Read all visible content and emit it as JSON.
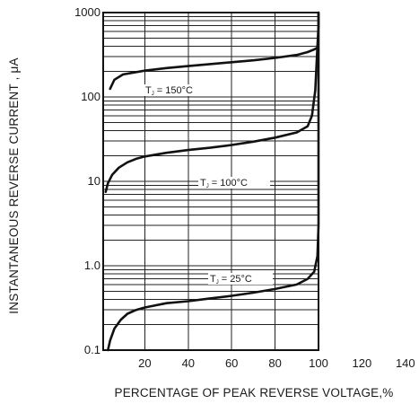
{
  "chart_data": {
    "type": "line",
    "title": "",
    "xlabel": "PERCENTAGE OF PEAK REVERSE VOLTAGE,%",
    "ylabel": "INSTANTANEOUS REVERSE CURRENT , μA",
    "xlim": [
      0,
      140
    ],
    "ylim": [
      0.1,
      1000
    ],
    "yscale": "log",
    "grid": true,
    "x_ticks": [
      20,
      40,
      60,
      80,
      100,
      120,
      140
    ],
    "x_tick_labels": [
      "20",
      "40",
      "60",
      "80",
      "100",
      "120",
      "140"
    ],
    "y_ticks": [
      0.1,
      1,
      10,
      100,
      1000
    ],
    "y_tick_labels": [
      "0.1",
      "1.0",
      "10",
      "100",
      "1000"
    ],
    "series": [
      {
        "name": "T_J = 150°C",
        "x": [
          4,
          6,
          10,
          20,
          30,
          40,
          50,
          60,
          70,
          80,
          90,
          95,
          98,
          99.5
        ],
        "y": [
          125,
          160,
          185,
          205,
          220,
          232,
          245,
          258,
          272,
          290,
          315,
          340,
          365,
          385
        ],
        "label": {
          "prefix": "T",
          "sub": "J",
          "suffix": " = 150°C"
        }
      },
      {
        "name": "T_J = 100°C",
        "x": [
          2,
          3,
          5,
          8,
          12,
          16,
          20,
          30,
          40,
          50,
          60,
          70,
          80,
          90,
          95,
          97,
          98.5,
          99.5,
          100,
          100
        ],
        "y": [
          7.5,
          9.5,
          12,
          14.5,
          16.8,
          18.5,
          19.7,
          21.8,
          23.5,
          25,
          27,
          29.5,
          33,
          38,
          45,
          60,
          120,
          400,
          700,
          1000
        ],
        "label": {
          "prefix": "T",
          "sub": "J",
          "suffix": " = 100°C"
        }
      },
      {
        "name": "T_J = 25°C",
        "x": [
          3,
          4,
          6,
          9,
          12,
          16,
          20,
          30,
          40,
          50,
          60,
          70,
          80,
          90,
          95,
          98,
          99.5,
          100,
          100
        ],
        "y": [
          0.1,
          0.13,
          0.18,
          0.23,
          0.27,
          0.3,
          0.32,
          0.36,
          0.38,
          0.41,
          0.44,
          0.48,
          0.53,
          0.6,
          0.7,
          0.85,
          1.3,
          3,
          1000
        ],
        "label": {
          "prefix": "T",
          "sub": "J",
          "suffix": " = 25°C"
        }
      }
    ]
  }
}
